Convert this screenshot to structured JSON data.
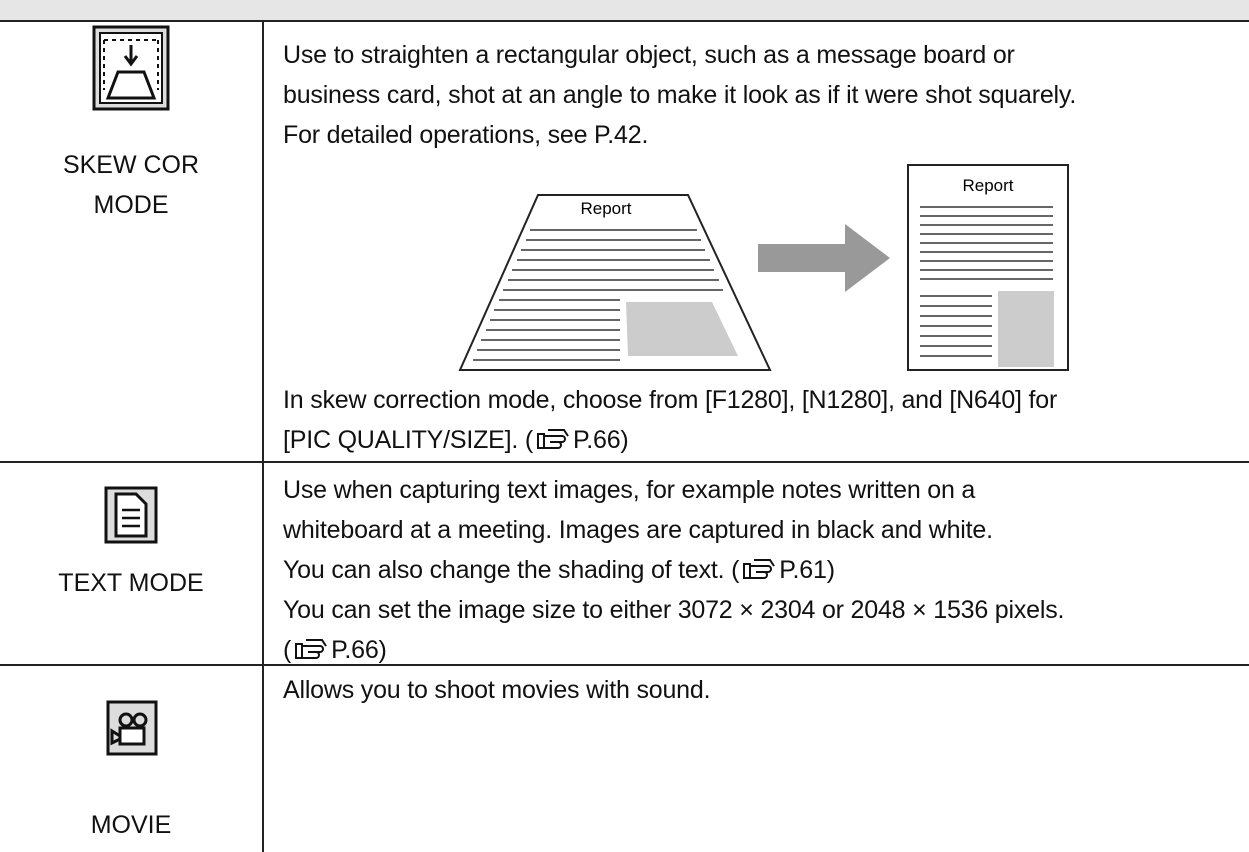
{
  "table": {
    "rows": [
      {
        "label": [
          "SKEW COR",
          "MODE"
        ],
        "description": [
          "Use to straighten a rectangular object, such as a message board or",
          "business card, shot at an angle to make it look as if it were shot squarely.",
          "For detailed operations, see P.42."
        ],
        "figure": {
          "before_label": "Report",
          "after_label": "Report"
        },
        "note": [
          "In skew correction mode, choose from [F1280], [N1280], and [N640] for",
          {
            "text": "[PIC QUALITY/SIZE]. (",
            "ref": "P.66)"
          }
        ]
      },
      {
        "label": [
          "TEXT MODE"
        ],
        "description": [
          "Use when capturing text images, for example notes written on a",
          "whiteboard at a meeting. Images are captured in black and white.",
          {
            "text": "You can also change the shading of text. (",
            "ref": "P.61)"
          },
          "You can set the image size to either 3072 × 2304 or 2048 × 1536 pixels.",
          {
            "text": "(",
            "ref": "P.66)"
          }
        ]
      },
      {
        "label": [
          "MOVIE"
        ],
        "description": [
          "Allows you to shoot movies with sound."
        ]
      }
    ]
  }
}
